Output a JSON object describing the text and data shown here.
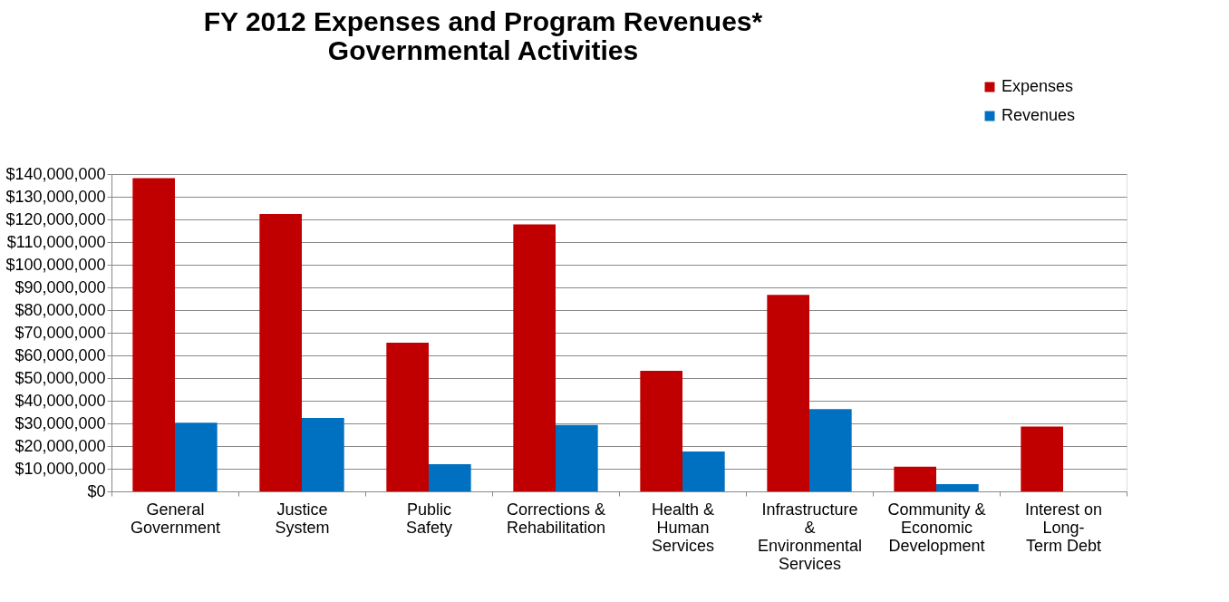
{
  "chart_data": {
    "type": "bar",
    "title": [
      "FY 2012 Expenses and Program Revenues*",
      "Governmental Activities"
    ],
    "categories": [
      "General\nGovernment",
      "Justice\nSystem",
      "Public\nSafety",
      "Corrections &\nRehabilitation",
      "Health &\nHuman\nServices",
      "Infrastructure\n&\nEnvironmental\nServices",
      "Community &\nEconomic\nDevelopment",
      "Interest on\nLong-\nTerm Debt"
    ],
    "series": [
      {
        "name": "Expenses",
        "color": "#c00000",
        "values": [
          138200000,
          122400000,
          65600000,
          117800000,
          53200000,
          86700000,
          10900000,
          28600000
        ]
      },
      {
        "name": "Revenues",
        "color": "#0070c0",
        "values": [
          30300000,
          32400000,
          12000000,
          29300000,
          17600000,
          36300000,
          3200000,
          0
        ]
      }
    ],
    "ylim": [
      0,
      140000000
    ],
    "yticks": [
      {
        "value": 0,
        "label": "$0"
      },
      {
        "value": 10000000,
        "label": "$10,000,000"
      },
      {
        "value": 20000000,
        "label": "$20,000,000"
      },
      {
        "value": 30000000,
        "label": "$30,000,000"
      },
      {
        "value": 40000000,
        "label": "$40,000,000"
      },
      {
        "value": 50000000,
        "label": "$50,000,000"
      },
      {
        "value": 60000000,
        "label": "$60,000,000"
      },
      {
        "value": 70000000,
        "label": "$70,000,000"
      },
      {
        "value": 80000000,
        "label": "$80,000,000"
      },
      {
        "value": 90000000,
        "label": "$90,000,000"
      },
      {
        "value": 100000000,
        "label": "$100,000,000"
      },
      {
        "value": 110000000,
        "label": "$110,000,000"
      },
      {
        "value": 120000000,
        "label": "$120,000,000"
      },
      {
        "value": 130000000,
        "label": "$130,000,000"
      },
      {
        "value": 140000000,
        "label": "$140,000,000"
      }
    ],
    "grid": "y",
    "legend": "top right"
  }
}
